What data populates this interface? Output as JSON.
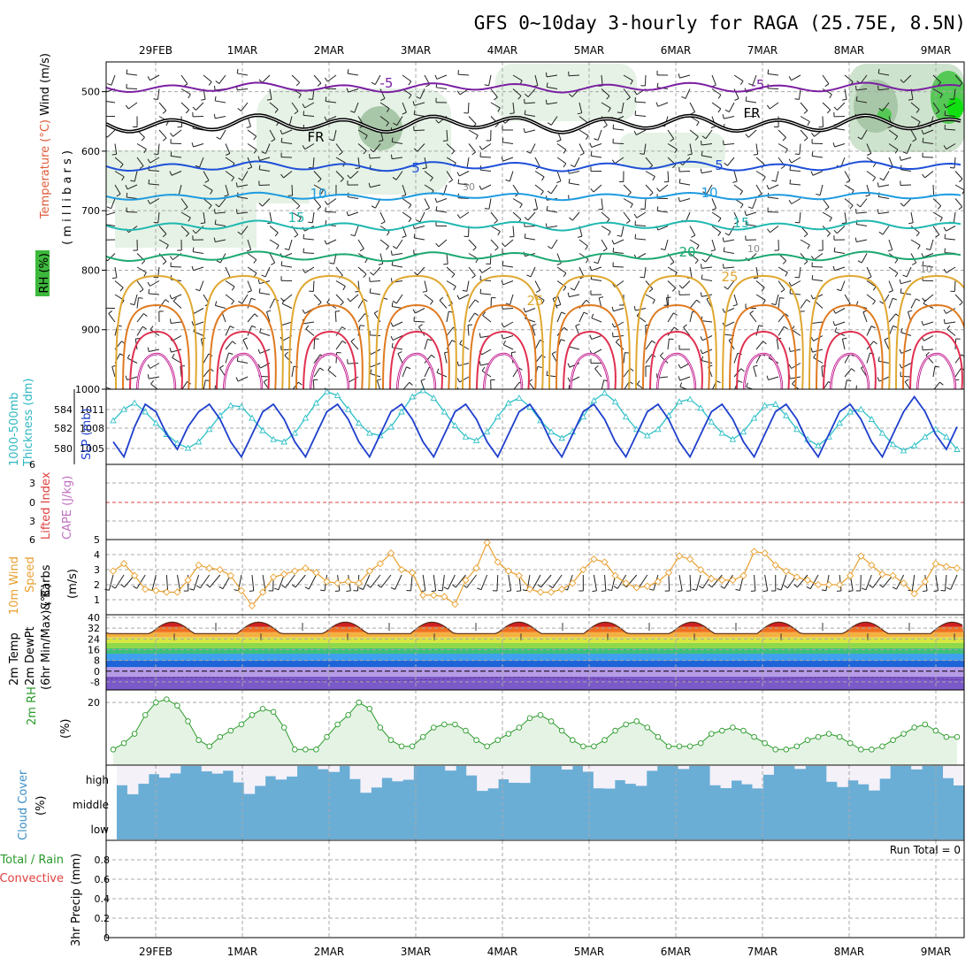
{
  "title": "GFS 0~10day 3-hourly for RAGA (25.75E, 8.5N)",
  "dates": [
    "29FEB",
    "1MAR",
    "2MAR",
    "3MAR",
    "4MAR",
    "5MAR",
    "6MAR",
    "7MAR",
    "8MAR",
    "9MAR"
  ],
  "colors": {
    "temp_cold": "#7b1fa2",
    "temp_fr": "#000000",
    "temp_5": "#1e4fd8",
    "temp_10": "#1e9be0",
    "temp_15": "#1fb8b0",
    "temp_20": "#1ca871",
    "temp_25": "#e0a830",
    "temp_30": "#e07a20",
    "temp_35": "#e03050",
    "temp_40": "#c0108a",
    "rh_fill": "#e5f2e5",
    "slp": "#1e3fcc",
    "thickness": "#30c0c8",
    "li_line": "#e04040",
    "wind10": "#e8a030",
    "rh2m": "#2a9a2a",
    "cloud": "#6aaed6",
    "cloud_light": "#f4f1f9"
  },
  "labels": {
    "wind_temp_rh": [
      "Wind (m/s)",
      "Temperature (°C)",
      "RH (%)"
    ],
    "millibars": "( m i l l i b a r s )",
    "slp_thick": [
      "1000-500mb",
      "Thickness (dm)",
      "SLP (mb)"
    ],
    "li_cape": [
      "Lifted Index",
      "CAPE (J/kg)"
    ],
    "wind10m": [
      "10m Wind",
      "Speed",
      "& Barbs",
      "(m/s)"
    ],
    "temp2m": [
      "2m Temp",
      "2m DewPt",
      "(6hr Min/Max) (°C)"
    ],
    "rh2m": [
      "2m RH",
      "(%)"
    ],
    "cloud": [
      "Cloud Cover",
      "(%)"
    ],
    "cloud_levels": [
      "high",
      "middle",
      "low"
    ],
    "precip": [
      "Total / Rain",
      "Convective",
      "3hr Precip (mm)"
    ],
    "run_total": "Run Total = 0"
  },
  "chart_data": [
    {
      "type": "line",
      "name": "pressure-time cross section",
      "ylabel": "(millibars)",
      "yticks": [
        500,
        600,
        700,
        800,
        900,
        1000
      ],
      "ylim": [
        450,
        1000
      ],
      "isotherm_labels": [
        "-5",
        "-5",
        "FR",
        "FR",
        "5",
        "5",
        "10",
        "10",
        "15",
        "15",
        "20",
        "25",
        "25",
        "30",
        "10",
        "10"
      ]
    },
    {
      "type": "line",
      "name": "SLP and thickness",
      "yticks_left": [
        "584",
        "582",
        "580"
      ],
      "yticks_right": [
        "1011",
        "1008",
        "1005"
      ],
      "slp_range": [
        1003,
        1013
      ],
      "series": [
        {
          "name": "SLP (mb)",
          "values": [
            1006,
            1004,
            1008,
            1011,
            1010,
            1007,
            1005,
            1008,
            1010,
            1011,
            1009,
            1006,
            1004,
            1007,
            1010,
            1011,
            1009,
            1006,
            1004,
            1007,
            1010,
            1011,
            1009,
            1006,
            1004,
            1007,
            1010,
            1011,
            1009,
            1006,
            1004,
            1007,
            1010,
            1011,
            1009,
            1006,
            1004,
            1007,
            1010,
            1011,
            1009,
            1006,
            1004,
            1007,
            1010,
            1011,
            1009,
            1006,
            1004,
            1007,
            1010,
            1011,
            1009,
            1006,
            1004,
            1007,
            1010,
            1011,
            1009,
            1006,
            1004,
            1007,
            1010,
            1011,
            1009,
            1006,
            1004,
            1007,
            1010,
            1011,
            1009,
            1006,
            1004,
            1007,
            1010,
            1012,
            1010,
            1007,
            1005,
            1008
          ]
        },
        {
          "name": "1000-500mb Thickness (dm)",
          "values": [
            582.5,
            583.4,
            583.9,
            583.2,
            582.3,
            581.4,
            580.7,
            580.3,
            580.8,
            581.8,
            582.9,
            583.7,
            583.6,
            582.7,
            581.7,
            581.0,
            580.8,
            581.5,
            582.7,
            583.9,
            584.8,
            584.5,
            583.4,
            582.3,
            581.5,
            581.3,
            582.0,
            583.2,
            584.4,
            584.9,
            584.3,
            583.2,
            582.1,
            581.2,
            580.9,
            581.6,
            582.8,
            583.9,
            584.3,
            583.6,
            582.5,
            581.6,
            581.1,
            581.6,
            582.8,
            584.1,
            584.7,
            584.0,
            582.8,
            581.8,
            581.3,
            581.8,
            582.9,
            584.0,
            584.2,
            583.5,
            582.4,
            581.5,
            581.0,
            581.6,
            582.7,
            583.7,
            583.8,
            582.9,
            581.8,
            581.0,
            580.5,
            581.2,
            582.3,
            583.2,
            583.4,
            582.6,
            581.5,
            580.6,
            580.1,
            580.5,
            581.2,
            581.8,
            581.2,
            580.2
          ]
        }
      ]
    },
    {
      "type": "line",
      "name": "Lifted Index / CAPE",
      "yticks": [
        "6",
        "3",
        "0",
        "3",
        "6"
      ],
      "ylim": [
        -6,
        6
      ]
    },
    {
      "type": "line",
      "name": "10m Wind Speed",
      "yticks": [
        "5",
        "4",
        "3",
        "2",
        "1"
      ],
      "ylim": [
        0,
        5
      ],
      "series": [
        {
          "name": "10m Wind Speed",
          "values": [
            2.9,
            3.4,
            2.6,
            1.7,
            1.6,
            1.5,
            1.5,
            2.3,
            3.3,
            3.1,
            3.0,
            2.6,
            1.6,
            0.6,
            1.5,
            2.5,
            2.7,
            2.9,
            3.1,
            2.8,
            2.2,
            2.1,
            2.2,
            2.1,
            2.9,
            3.4,
            4.1,
            3.0,
            2.8,
            1.3,
            1.3,
            1.2,
            0.7,
            2.3,
            3.1,
            4.8,
            3.5,
            2.9,
            2.6,
            1.7,
            1.5,
            1.5,
            1.7,
            2.1,
            3.0,
            3.7,
            3.5,
            2.6,
            2.1,
            1.8,
            1.9,
            2.2,
            2.8,
            3.9,
            3.7,
            3.0,
            2.4,
            2.3,
            2.3,
            2.6,
            4.2,
            4.1,
            3.3,
            2.9,
            2.5,
            2.3,
            2.0,
            2.0,
            2.0,
            2.6,
            3.9,
            3.3,
            2.7,
            2.6,
            2.1,
            1.4,
            2.2,
            3.4,
            3.2,
            3.1
          ]
        }
      ]
    },
    {
      "type": "area",
      "name": "2m Temp / DewPt",
      "yticks": [
        "40",
        "32",
        "24",
        "16",
        "8",
        "0",
        "-8"
      ],
      "ylim": [
        -14,
        42
      ]
    },
    {
      "type": "area",
      "name": "2m RH",
      "yticks": [
        "20"
      ],
      "ylim": [
        0,
        24
      ],
      "series": [
        {
          "name": "2m RH",
          "values": [
            5,
            7,
            10,
            16,
            20,
            21,
            19,
            14,
            8,
            6,
            9,
            11,
            13,
            16,
            18,
            17,
            12,
            5,
            5,
            5,
            9,
            13,
            16,
            20,
            18,
            12,
            8,
            6,
            6,
            9,
            12,
            13,
            13,
            11,
            8,
            6,
            8,
            10,
            12,
            15,
            16,
            14,
            11,
            8,
            6,
            6,
            8,
            11,
            13,
            14,
            12,
            9,
            6,
            6,
            6,
            7,
            10,
            11,
            12,
            11,
            9,
            7,
            5,
            5,
            6,
            8,
            9,
            10,
            9,
            7,
            5,
            5,
            6,
            8,
            10,
            12,
            13,
            11,
            9,
            9
          ]
        }
      ]
    },
    {
      "type": "bar",
      "name": "Cloud Cover",
      "yticks": [
        "high",
        "middle",
        "low"
      ]
    },
    {
      "type": "bar",
      "name": "3hr Precip",
      "yticks": [
        "0.8",
        "0.6",
        "0.4",
        "0.2",
        "0"
      ],
      "ylim": [
        0,
        1
      ]
    }
  ]
}
